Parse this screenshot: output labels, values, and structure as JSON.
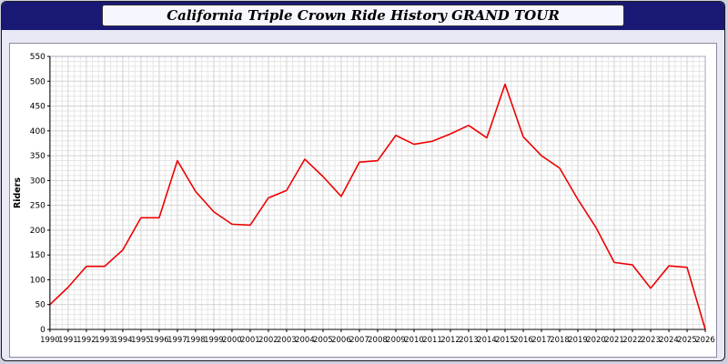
{
  "window": {
    "title": "California Triple Crown Ride History GRAND TOUR"
  },
  "colors": {
    "titlebar_bg": "#191975",
    "window_bg": "#e9e9f6",
    "panel_bg": "#ffffff",
    "line": "#ee0000",
    "grid_minor": "#e6e6e6",
    "grid_major": "#d2d2d2",
    "axis": "#000000"
  },
  "chart_data": {
    "type": "line",
    "title": "California Triple Crown Ride History GRAND TOUR",
    "xlabel": "",
    "ylabel": "Riders",
    "ylim": [
      0,
      550
    ],
    "ytick_step": 50,
    "grid": true,
    "legend": "none",
    "line_color": "#ee0000",
    "x": [
      1990,
      1991,
      1992,
      1993,
      1994,
      1995,
      1996,
      1997,
      1998,
      1999,
      2000,
      2001,
      2002,
      2003,
      2004,
      2005,
      2006,
      2007,
      2008,
      2009,
      2010,
      2011,
      2012,
      2013,
      2014,
      2015,
      2016,
      2017,
      2018,
      2019,
      2020,
      2021,
      2022,
      2023,
      2024,
      2025,
      2026
    ],
    "values": [
      50,
      85,
      127,
      127,
      160,
      225,
      225,
      340,
      278,
      237,
      212,
      210,
      265,
      280,
      343,
      308,
      268,
      337,
      340,
      391,
      373,
      379,
      394,
      411,
      386,
      494,
      388,
      350,
      325,
      262,
      205,
      135,
      130,
      83,
      128,
      125,
      0
    ]
  }
}
